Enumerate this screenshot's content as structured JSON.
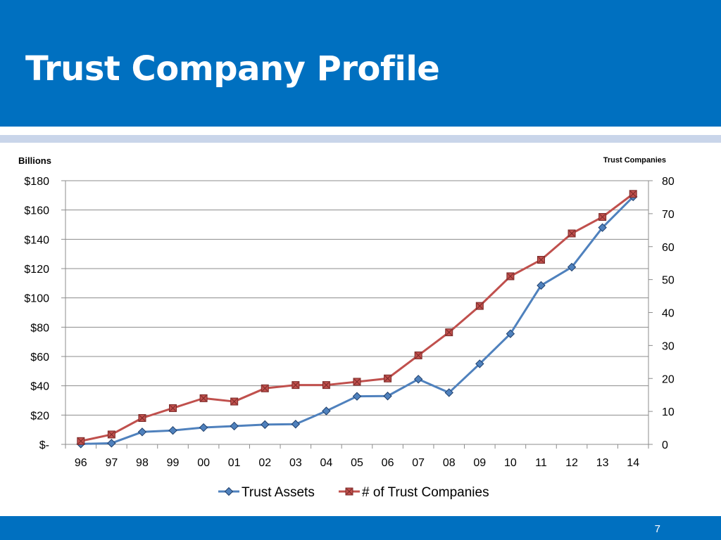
{
  "slide": {
    "title": "Trust Company Profile",
    "page_number": "7"
  },
  "colors": {
    "header": "#0070c0",
    "stripe": "#c9d5ea",
    "assets_line": "#4f81bd",
    "companies_line": "#c0504d"
  },
  "chart_data": {
    "type": "line",
    "title": "",
    "categories": [
      "96",
      "97",
      "98",
      "99",
      "00",
      "01",
      "02",
      "03",
      "04",
      "05",
      "06",
      "07",
      "08",
      "09",
      "10",
      "11",
      "12",
      "13",
      "14"
    ],
    "y_left": {
      "label": "Billions",
      "range": [
        0,
        180
      ],
      "ticks": [
        {
          "value": 0,
          "label": "$-"
        },
        {
          "value": 20,
          "label": "$20"
        },
        {
          "value": 40,
          "label": "$40"
        },
        {
          "value": 60,
          "label": "$60"
        },
        {
          "value": 80,
          "label": "$80"
        },
        {
          "value": 100,
          "label": "$100"
        },
        {
          "value": 120,
          "label": "$120"
        },
        {
          "value": 140,
          "label": "$140"
        },
        {
          "value": 160,
          "label": "$160"
        },
        {
          "value": 180,
          "label": "$180"
        }
      ]
    },
    "y_right": {
      "label": "Trust Companies",
      "range": [
        0,
        80
      ],
      "ticks": [
        {
          "value": 0,
          "label": "0"
        },
        {
          "value": 10,
          "label": "10"
        },
        {
          "value": 20,
          "label": "20"
        },
        {
          "value": 30,
          "label": "30"
        },
        {
          "value": 40,
          "label": "40"
        },
        {
          "value": 50,
          "label": "50"
        },
        {
          "value": 60,
          "label": "60"
        },
        {
          "value": 70,
          "label": "70"
        },
        {
          "value": 80,
          "label": "80"
        }
      ]
    },
    "series": [
      {
        "name": "Trust Assets",
        "axis": "left",
        "marker": "diamond",
        "values": [
          0.3,
          0.8,
          8.5,
          9.5,
          11.5,
          12.5,
          13.5,
          13.8,
          22.8,
          32.8,
          33,
          44.5,
          35.3,
          55,
          75.5,
          108.5,
          121,
          148,
          169
        ]
      },
      {
        "name": "# of Trust Companies",
        "axis": "right",
        "marker": "square",
        "values": [
          1,
          3,
          8,
          11,
          14,
          13,
          17,
          18,
          18,
          19,
          20,
          27,
          34,
          42,
          51,
          56,
          64,
          69,
          76
        ]
      }
    ],
    "grid": true,
    "legend": "bottom"
  }
}
